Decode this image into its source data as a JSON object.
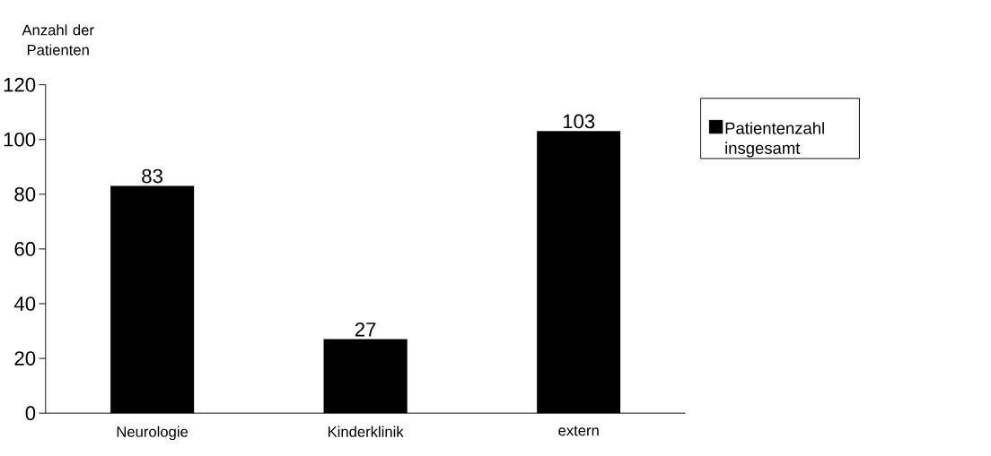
{
  "chart_data": {
    "type": "bar",
    "ylabel": "Anzahl der Patienten",
    "categories": [
      "Neurologie",
      "Kinderklinik",
      "extern"
    ],
    "series": [
      {
        "name": "Patientenzahl insgesamt",
        "color": "#000000",
        "values": [
          83,
          27,
          103
        ]
      }
    ],
    "ylim": [
      0,
      120
    ],
    "yticks": [
      0,
      20,
      40,
      60,
      80,
      100,
      120
    ],
    "data_labels": true,
    "legend": "right"
  }
}
